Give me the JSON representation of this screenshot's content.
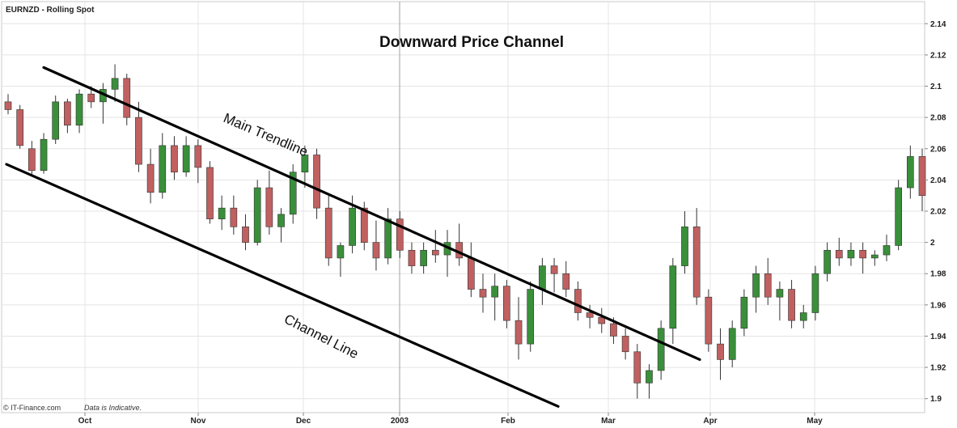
{
  "chart_data": {
    "type": "candlestick",
    "instrument": "EURNZD - Rolling Spot",
    "title": "Downward Price Channel",
    "footer_source": "© IT-Finance.com",
    "footer_note": "Data is Indicative.",
    "y_range": [
      1.89,
      2.15
    ],
    "y_ticks": [
      "2.14",
      "2.12",
      "2.1",
      "2.08",
      "2.06",
      "2.04",
      "2.02",
      "2",
      "1.98",
      "1.96",
      "1.94",
      "1.92",
      "1.9"
    ],
    "x_ticks": [
      "Oct",
      "Nov",
      "Dec",
      "2003",
      "Feb",
      "Mar",
      "Apr",
      "May"
    ],
    "grid": true,
    "colors": {
      "up": "#3a8f3a",
      "down": "#c06060",
      "grid": "#e4e4e4",
      "trend": "#000000"
    },
    "annotations": [
      {
        "text": "Main Trendline",
        "from": [
          "Sep 18",
          2.112
        ],
        "to": [
          "Mar 26",
          1.925
        ]
      },
      {
        "text": "Channel Line",
        "from": [
          "Sep 16",
          2.05
        ],
        "to": [
          "Feb 24",
          1.895
        ]
      }
    ],
    "series": [
      {
        "values": [
          [
            2.09,
            2.095,
            2.082,
            2.085
          ],
          [
            2.085,
            2.088,
            2.06,
            2.062
          ],
          [
            2.06,
            2.065,
            2.042,
            2.046
          ],
          [
            2.046,
            2.07,
            2.044,
            2.066
          ],
          [
            2.066,
            2.094,
            2.063,
            2.09
          ],
          [
            2.09,
            2.092,
            2.07,
            2.075
          ],
          [
            2.075,
            2.098,
            2.07,
            2.095
          ],
          [
            2.095,
            2.1,
            2.086,
            2.09
          ],
          [
            2.09,
            2.102,
            2.076,
            2.098
          ],
          [
            2.098,
            2.114,
            2.09,
            2.105
          ],
          [
            2.105,
            2.108,
            2.075,
            2.08
          ],
          [
            2.08,
            2.09,
            2.045,
            2.05
          ],
          [
            2.05,
            2.06,
            2.025,
            2.032
          ],
          [
            2.032,
            2.07,
            2.028,
            2.062
          ],
          [
            2.062,
            2.068,
            2.04,
            2.045
          ],
          [
            2.045,
            2.068,
            2.042,
            2.062
          ],
          [
            2.062,
            2.066,
            2.038,
            2.048
          ],
          [
            2.048,
            2.052,
            2.012,
            2.015
          ],
          [
            2.015,
            2.03,
            2.008,
            2.022
          ],
          [
            2.022,
            2.03,
            2.005,
            2.01
          ],
          [
            2.01,
            2.018,
            1.995,
            2.0
          ],
          [
            2.0,
            2.04,
            1.998,
            2.035
          ],
          [
            2.035,
            2.046,
            2.005,
            2.01
          ],
          [
            2.01,
            2.022,
            2.0,
            2.018
          ],
          [
            2.018,
            2.05,
            2.012,
            2.045
          ],
          [
            2.045,
            2.062,
            2.035,
            2.056
          ],
          [
            2.056,
            2.06,
            2.015,
            2.022
          ],
          [
            2.022,
            2.03,
            1.985,
            1.99
          ],
          [
            1.99,
            2.0,
            1.978,
            1.998
          ],
          [
            1.998,
            2.03,
            1.993,
            2.022
          ],
          [
            2.022,
            2.026,
            1.995,
            2.0
          ],
          [
            2.0,
            2.014,
            1.982,
            1.99
          ],
          [
            1.99,
            2.022,
            1.986,
            2.015
          ],
          [
            2.015,
            2.02,
            1.99,
            1.995
          ],
          [
            1.995,
            2.0,
            1.98,
            1.985
          ],
          [
            1.985,
            2.0,
            1.98,
            1.995
          ],
          [
            1.995,
            2.008,
            1.987,
            1.992
          ],
          [
            1.992,
            2.008,
            1.978,
            2.0
          ],
          [
            2.0,
            2.012,
            1.985,
            1.99
          ],
          [
            1.99,
            2.0,
            1.965,
            1.97
          ],
          [
            1.97,
            1.98,
            1.955,
            1.965
          ],
          [
            1.965,
            1.98,
            1.95,
            1.972
          ],
          [
            1.972,
            1.976,
            1.945,
            1.95
          ],
          [
            1.95,
            1.965,
            1.925,
            1.935
          ],
          [
            1.935,
            1.975,
            1.93,
            1.97
          ],
          [
            1.97,
            1.99,
            1.96,
            1.985
          ],
          [
            1.985,
            1.99,
            1.968,
            1.98
          ],
          [
            1.98,
            1.988,
            1.965,
            1.97
          ],
          [
            1.97,
            1.975,
            1.95,
            1.955
          ],
          [
            1.955,
            1.96,
            1.945,
            1.952
          ],
          [
            1.952,
            1.958,
            1.942,
            1.948
          ],
          [
            1.948,
            1.952,
            1.935,
            1.94
          ],
          [
            1.94,
            1.945,
            1.925,
            1.93
          ],
          [
            1.93,
            1.935,
            1.9,
            1.91
          ],
          [
            1.91,
            1.922,
            1.9,
            1.918
          ],
          [
            1.918,
            1.95,
            1.912,
            1.945
          ],
          [
            1.945,
            1.99,
            1.935,
            1.985
          ],
          [
            1.985,
            2.02,
            1.98,
            2.01
          ],
          [
            2.01,
            2.022,
            1.96,
            1.965
          ],
          [
            1.965,
            1.97,
            1.93,
            1.935
          ],
          [
            1.935,
            1.945,
            1.912,
            1.925
          ],
          [
            1.925,
            1.95,
            1.92,
            1.945
          ],
          [
            1.945,
            1.97,
            1.94,
            1.965
          ],
          [
            1.965,
            1.985,
            1.955,
            1.98
          ],
          [
            1.98,
            1.99,
            1.96,
            1.965
          ],
          [
            1.965,
            1.975,
            1.95,
            1.97
          ],
          [
            1.97,
            1.976,
            1.945,
            1.95
          ],
          [
            1.95,
            1.96,
            1.945,
            1.955
          ],
          [
            1.955,
            1.985,
            1.95,
            1.98
          ],
          [
            1.98,
            2.0,
            1.975,
            1.995
          ],
          [
            1.995,
            2.003,
            1.985,
            1.99
          ],
          [
            1.99,
            2.0,
            1.985,
            1.995
          ],
          [
            1.995,
            2.0,
            1.98,
            1.99
          ],
          [
            1.99,
            1.995,
            1.985,
            1.992
          ],
          [
            1.992,
            2.005,
            1.988,
            1.998
          ],
          [
            1.998,
            2.04,
            1.995,
            2.035
          ],
          [
            2.035,
            2.062,
            2.028,
            2.055
          ],
          [
            2.055,
            2.06,
            2.02,
            2.03
          ]
        ]
      }
    ]
  }
}
